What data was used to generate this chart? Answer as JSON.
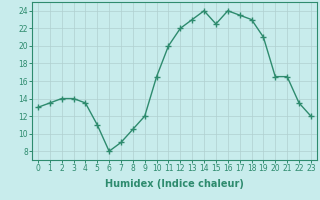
{
  "x": [
    0,
    1,
    2,
    3,
    4,
    5,
    6,
    7,
    8,
    9,
    10,
    11,
    12,
    13,
    14,
    15,
    16,
    17,
    18,
    19,
    20,
    21,
    22,
    23
  ],
  "y": [
    13,
    13.5,
    14,
    14,
    13.5,
    11,
    8,
    9,
    10.5,
    12,
    16.5,
    20,
    22,
    23,
    24,
    22.5,
    24,
    23.5,
    23,
    21,
    16.5,
    16.5,
    13.5,
    12
  ],
  "line_color": "#2e8b6e",
  "bg_color": "#c8ecec",
  "grid_color": "#b0d0d0",
  "xlabel": "Humidex (Indice chaleur)",
  "xlim": [
    -0.5,
    23.5
  ],
  "ylim": [
    7,
    25
  ],
  "yticks": [
    8,
    10,
    12,
    14,
    16,
    18,
    20,
    22,
    24
  ],
  "xticks": [
    0,
    1,
    2,
    3,
    4,
    5,
    6,
    7,
    8,
    9,
    10,
    11,
    12,
    13,
    14,
    15,
    16,
    17,
    18,
    19,
    20,
    21,
    22,
    23
  ],
  "marker": "+",
  "markersize": 4,
  "linewidth": 1.0,
  "xlabel_fontsize": 7,
  "tick_fontsize": 5.5
}
